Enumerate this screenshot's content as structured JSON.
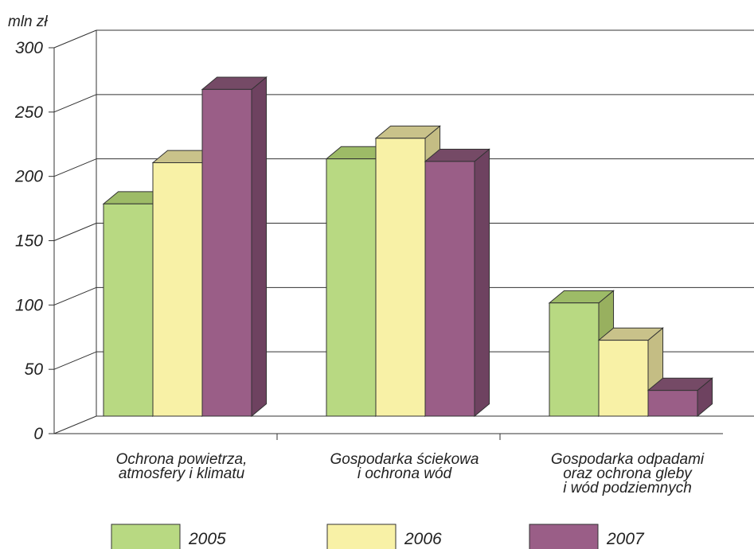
{
  "chart_data": {
    "type": "bar",
    "ylabel": "mln zł",
    "ylim": [
      0,
      300
    ],
    "yticks": [
      "0",
      "50",
      "100",
      "150",
      "200",
      "250",
      "300"
    ],
    "categories": [
      [
        "Ochrona powietrza,",
        "atmosfery i klimatu"
      ],
      [
        "Gospodarka ściekowa",
        "i ochrona wód"
      ],
      [
        "Gospodarka odpadami",
        "oraz ochrona gleby",
        "i wód podziemnych"
      ]
    ],
    "series": [
      {
        "name": "2005",
        "values": [
          165,
          200,
          88
        ],
        "color": "#b8d982",
        "top": "#9dbb67",
        "side": "#98b05f"
      },
      {
        "name": "2006",
        "values": [
          197,
          216,
          59
        ],
        "color": "#f8f1a6",
        "top": "#c9c28a",
        "side": "#c4bd84"
      },
      {
        "name": "2007",
        "values": [
          254,
          198,
          20
        ],
        "color": "#9a5e87",
        "top": "#754a66",
        "side": "#6e4260"
      }
    ],
    "grid": true,
    "legend": "bottom"
  }
}
